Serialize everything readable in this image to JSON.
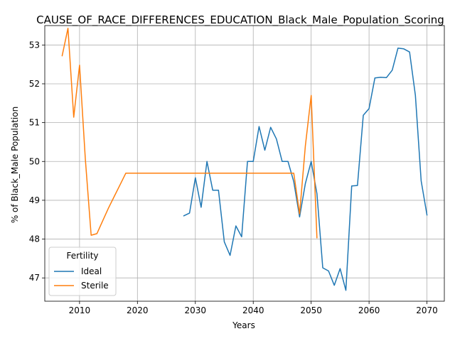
{
  "chart_data": {
    "type": "line",
    "title": "CAUSE_OF_RACE_DIFFERENCES_EDUCATION_Black_Male_Population_Scoring",
    "xlabel": "Years",
    "ylabel": "% of Black_Male Population",
    "xlim": [
      2004,
      2073
    ],
    "ylim": [
      46.4,
      53.5
    ],
    "xticks": [
      2010,
      2020,
      2030,
      2040,
      2050,
      2060,
      2070
    ],
    "yticks": [
      47,
      48,
      49,
      50,
      51,
      52,
      53
    ],
    "grid": true,
    "legend": {
      "title": "Fertility",
      "placement": "lower-left"
    },
    "series": [
      {
        "name": "Ideal",
        "color": "#1f77b4",
        "points": [
          [
            2028,
            48.6
          ],
          [
            2029,
            48.67
          ],
          [
            2030,
            49.58
          ],
          [
            2031,
            48.82
          ],
          [
            2032,
            50.0
          ],
          [
            2033,
            49.26
          ],
          [
            2034,
            49.26
          ],
          [
            2035,
            47.93
          ],
          [
            2036,
            47.58
          ],
          [
            2037,
            48.34
          ],
          [
            2038,
            48.06
          ],
          [
            2039,
            50.0
          ],
          [
            2040,
            50.0
          ],
          [
            2041,
            50.9
          ],
          [
            2042,
            50.29
          ],
          [
            2043,
            50.88
          ],
          [
            2044,
            50.58
          ],
          [
            2045,
            50.0
          ],
          [
            2046,
            50.0
          ],
          [
            2047,
            49.48
          ],
          [
            2048,
            48.57
          ],
          [
            2049,
            49.43
          ],
          [
            2050,
            50.0
          ],
          [
            2051,
            49.17
          ],
          [
            2052,
            47.26
          ],
          [
            2053,
            47.18
          ],
          [
            2054,
            46.81
          ],
          [
            2055,
            47.24
          ],
          [
            2056,
            46.68
          ],
          [
            2057,
            49.37
          ],
          [
            2058,
            49.38
          ],
          [
            2059,
            51.19
          ],
          [
            2060,
            51.36
          ],
          [
            2061,
            52.15
          ],
          [
            2062,
            52.17
          ],
          [
            2063,
            52.16
          ],
          [
            2064,
            52.35
          ],
          [
            2065,
            52.92
          ],
          [
            2066,
            52.9
          ],
          [
            2067,
            52.82
          ],
          [
            2068,
            51.7
          ],
          [
            2069,
            49.5
          ],
          [
            2070,
            48.62
          ]
        ]
      },
      {
        "name": "Sterile",
        "color": "#ff7f0e",
        "points": [
          [
            2007,
            52.72
          ],
          [
            2008,
            53.43
          ],
          [
            2009,
            51.14
          ],
          [
            2010,
            52.48
          ],
          [
            2011,
            50.07
          ],
          [
            2012,
            48.1
          ],
          [
            2013,
            48.14
          ],
          [
            2014,
            48.47
          ],
          [
            2015,
            48.8
          ],
          [
            2016,
            49.1
          ],
          [
            2017,
            49.4
          ],
          [
            2018,
            49.7
          ],
          [
            2019,
            49.7
          ],
          [
            2020,
            49.7
          ],
          [
            2025,
            49.7
          ],
          [
            2030,
            49.7
          ],
          [
            2035,
            49.7
          ],
          [
            2040,
            49.7
          ],
          [
            2045,
            49.7
          ],
          [
            2046,
            49.7
          ],
          [
            2047,
            49.7
          ],
          [
            2048,
            48.65
          ],
          [
            2049,
            50.4
          ],
          [
            2050,
            51.7
          ],
          [
            2051,
            48.03
          ]
        ]
      }
    ]
  }
}
